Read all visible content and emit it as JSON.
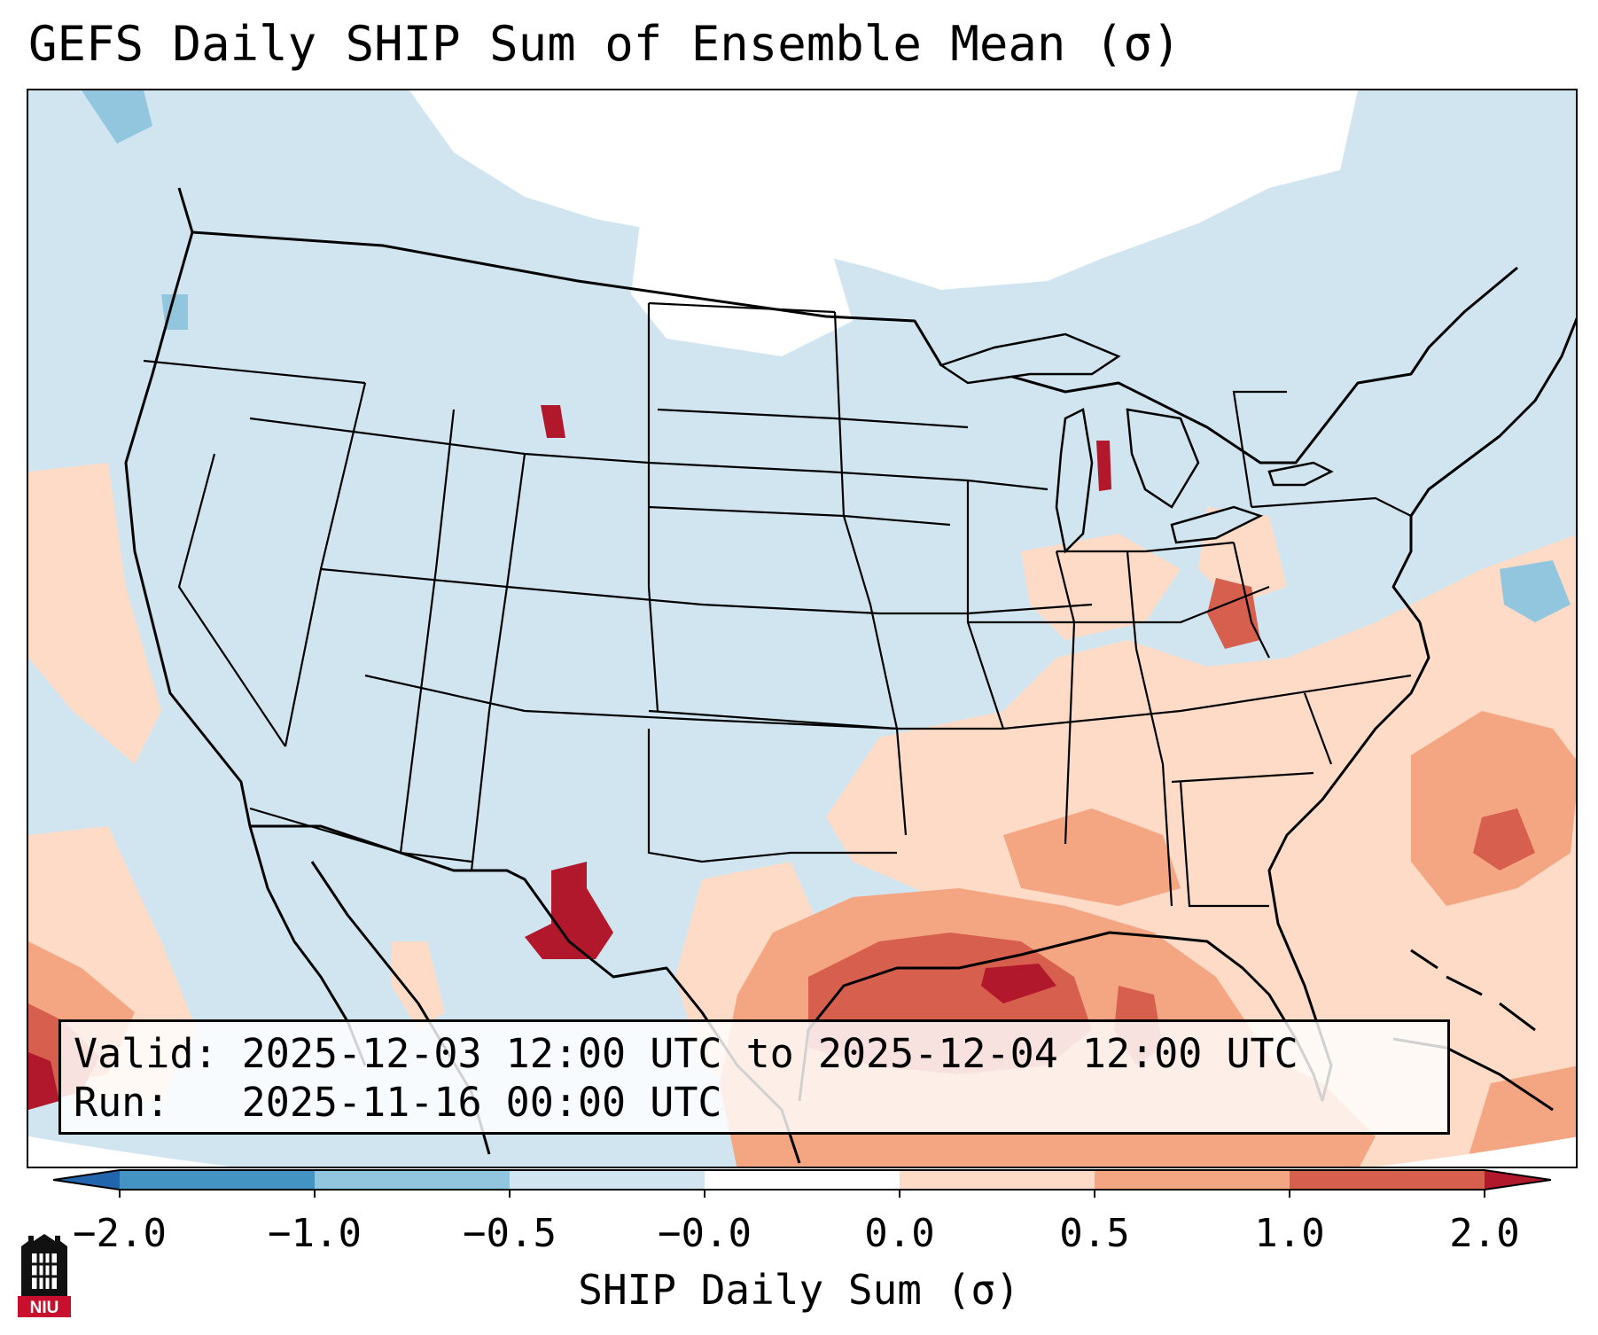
{
  "title": "GEFS Daily SHIP Sum of Ensemble Mean (σ)",
  "info_box": {
    "valid_label": "Valid:",
    "valid_value": "2025-12-03 12:00 UTC to 2025-12-04 12:00 UTC",
    "run_label": "Run:",
    "run_value": "2025-11-16 00:00 UTC"
  },
  "colorbar": {
    "label": "SHIP Daily Sum (σ)",
    "ticks": [
      "−2.0",
      "−1.0",
      "−0.5",
      "−0.0",
      "0.0",
      "0.5",
      "1.0",
      "2.0"
    ],
    "bins": [
      {
        "range": "< -2.0",
        "color": "#2166ac"
      },
      {
        "range": "-2.0 to -1.0",
        "color": "#4393c3"
      },
      {
        "range": "-1.0 to -0.5",
        "color": "#92c5de"
      },
      {
        "range": "-0.5 to -0.0",
        "color": "#d1e5f0"
      },
      {
        "range": "-0.0 to 0.0",
        "color": "#ffffff"
      },
      {
        "range": "0.0 to 0.5",
        "color": "#fddbc7"
      },
      {
        "range": "0.5 to 1.0",
        "color": "#f4a582"
      },
      {
        "range": "1.0 to 2.0",
        "color": "#d6604d"
      },
      {
        "range": "> 2.0",
        "color": "#b2182b"
      }
    ]
  },
  "logo": {
    "text": "NIU",
    "name": "niu-logo-icon",
    "color": "#c8102e"
  },
  "map": {
    "projection": "Lambert conformal, CONUS",
    "background_color": "#d1e5f0",
    "boundaries": "states, countries, coastlines"
  }
}
